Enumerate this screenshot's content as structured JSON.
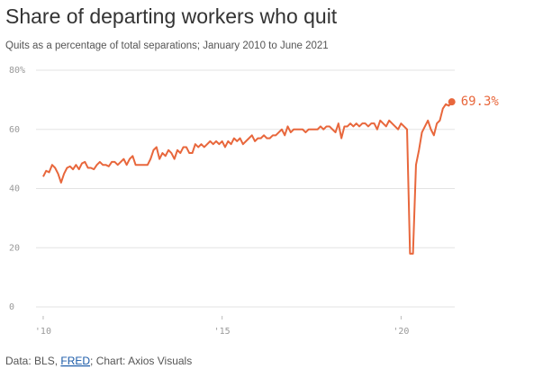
{
  "chart_data": {
    "type": "line",
    "title": "Share of departing workers who quit",
    "subtitle": "Quits as a percentage of total separations; January 2010 to June 2021",
    "source": {
      "prefix": "Data: BLS, ",
      "link": "FRED",
      "suffix": "; Chart: Axios Visuals"
    },
    "annotation": "69.3%",
    "color": "#e8673c",
    "grid": true,
    "xlim": [
      2009.8,
      2021.5
    ],
    "xticks": [
      {
        "value": 2010,
        "label": "'10"
      },
      {
        "value": 2015,
        "label": "'15"
      },
      {
        "value": 2020,
        "label": "'20"
      }
    ],
    "ylim": [
      0,
      80
    ],
    "yticks": [
      0,
      20,
      40,
      60,
      {
        "value": 80,
        "label": "80%"
      }
    ],
    "x": [
      2010,
      2010.083,
      2010.167,
      2010.25,
      2010.333,
      2010.417,
      2010.5,
      2010.583,
      2010.667,
      2010.75,
      2010.833,
      2010.917,
      2011,
      2011.083,
      2011.167,
      2011.25,
      2011.333,
      2011.417,
      2011.5,
      2011.583,
      2011.667,
      2011.75,
      2011.833,
      2011.917,
      2012,
      2012.083,
      2012.167,
      2012.25,
      2012.333,
      2012.417,
      2012.5,
      2012.583,
      2012.667,
      2012.75,
      2012.833,
      2012.917,
      2013,
      2013.083,
      2013.167,
      2013.25,
      2013.333,
      2013.417,
      2013.5,
      2013.583,
      2013.667,
      2013.75,
      2013.833,
      2013.917,
      2014,
      2014.083,
      2014.167,
      2014.25,
      2014.333,
      2014.417,
      2014.5,
      2014.583,
      2014.667,
      2014.75,
      2014.833,
      2014.917,
      2015,
      2015.083,
      2015.167,
      2015.25,
      2015.333,
      2015.417,
      2015.5,
      2015.583,
      2015.667,
      2015.75,
      2015.833,
      2015.917,
      2016,
      2016.083,
      2016.167,
      2016.25,
      2016.333,
      2016.417,
      2016.5,
      2016.583,
      2016.667,
      2016.75,
      2016.833,
      2016.917,
      2017,
      2017.083,
      2017.167,
      2017.25,
      2017.333,
      2017.417,
      2017.5,
      2017.583,
      2017.667,
      2017.75,
      2017.833,
      2017.917,
      2018,
      2018.083,
      2018.167,
      2018.25,
      2018.333,
      2018.417,
      2018.5,
      2018.583,
      2018.667,
      2018.75,
      2018.833,
      2018.917,
      2019,
      2019.083,
      2019.167,
      2019.25,
      2019.333,
      2019.417,
      2019.5,
      2019.583,
      2019.667,
      2019.75,
      2019.833,
      2019.917,
      2020,
      2020.083,
      2020.167,
      2020.25,
      2020.333,
      2020.417,
      2020.5,
      2020.583,
      2020.667,
      2020.75,
      2020.833,
      2020.917,
      2021,
      2021.083,
      2021.167,
      2021.25,
      2021.333,
      2021.417
    ],
    "values": [
      44,
      46,
      45.5,
      48,
      47,
      45,
      42,
      45,
      47,
      47.5,
      46.5,
      48,
      46.5,
      48.5,
      49,
      47,
      47,
      46.5,
      48,
      49,
      48,
      48,
      47.5,
      49,
      49,
      48,
      49,
      50,
      48,
      50,
      51,
      48,
      48,
      48,
      48,
      48,
      50,
      53,
      54,
      50,
      52,
      51,
      53,
      52,
      50,
      53,
      52,
      54,
      54,
      52,
      52,
      55,
      54,
      55,
      54,
      55,
      56,
      55,
      56,
      55,
      56,
      54,
      56,
      55,
      57,
      56,
      57,
      55,
      56,
      57,
      58,
      56,
      57,
      57,
      58,
      57,
      57,
      58,
      58,
      59,
      60,
      58,
      61,
      59,
      60,
      60,
      60,
      60,
      59,
      60,
      60,
      60,
      60,
      61,
      60,
      61,
      61,
      60,
      59,
      62,
      57,
      61,
      61,
      62,
      61,
      62,
      61,
      62,
      62,
      61,
      62,
      62,
      60,
      63,
      62,
      61,
      63,
      62,
      61,
      60,
      62,
      61,
      60,
      18,
      18,
      48,
      53,
      59,
      61,
      63,
      60,
      58,
      62,
      63,
      67,
      68.5,
      68,
      69.3
    ]
  }
}
